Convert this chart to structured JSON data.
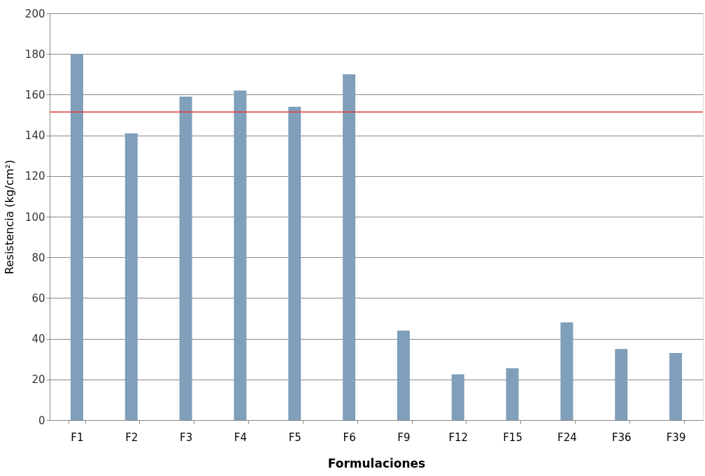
{
  "chart_data": {
    "type": "bar",
    "xlabel": "Formulaciones",
    "ylabel": "Resistencia (kg/cm²)",
    "categories": [
      "F1",
      "F2",
      "F3",
      "F4",
      "F5",
      "F6",
      "F9",
      "F12",
      "F15",
      "F24",
      "F36",
      "F39"
    ],
    "values": [
      180,
      141,
      159,
      162,
      154,
      170,
      44,
      22.5,
      25.5,
      48,
      35,
      33
    ],
    "color": "#7f9fba",
    "ylim": [
      0,
      200
    ],
    "yticks": [
      0,
      20,
      40,
      60,
      80,
      100,
      120,
      140,
      160,
      180,
      200
    ],
    "grid": "y",
    "ref_lines": [
      {
        "axis": "y",
        "value": 151.5,
        "color": "#e8393a"
      }
    ]
  }
}
